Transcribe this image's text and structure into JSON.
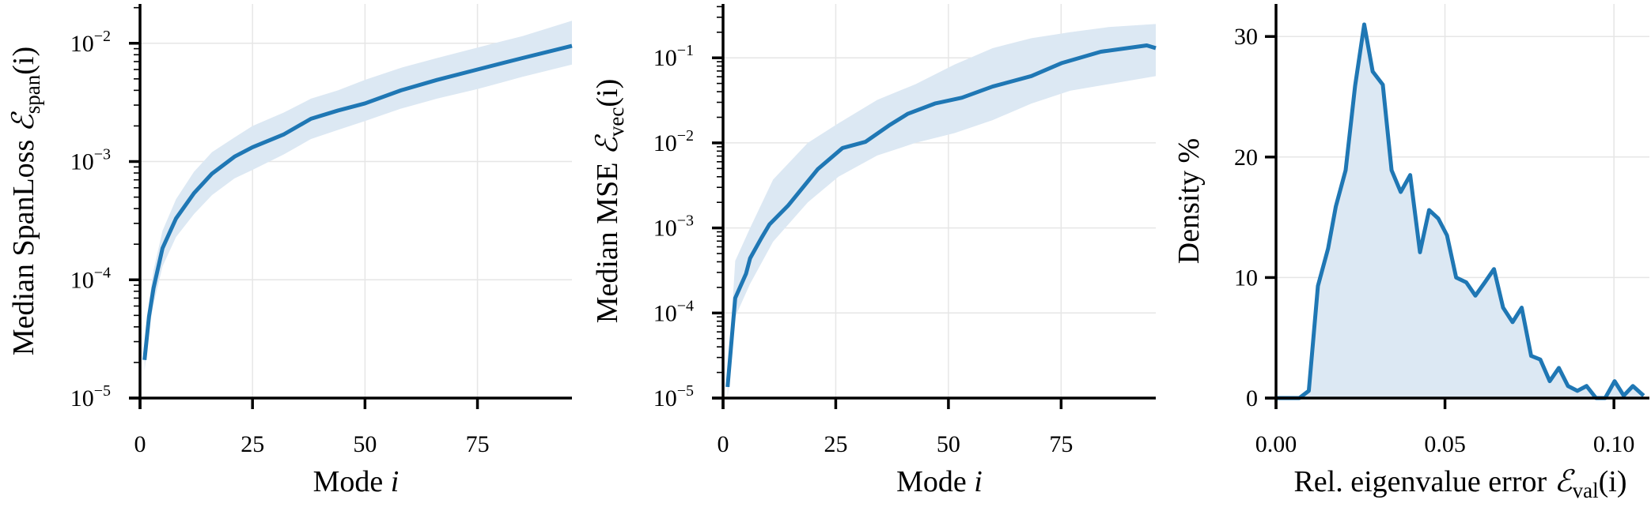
{
  "colors": {
    "line": "#1f77b4",
    "band": "#dce8f3",
    "grid": "#e6e6e6",
    "axis": "#000000"
  },
  "chart_data": [
    {
      "type": "line",
      "xlabel": {
        "text": "Mode ",
        "var": "i"
      },
      "ylabel": {
        "text": "Median SpanLoss ",
        "sym": "ℰ",
        "sub": "span",
        "arg": "(i)"
      },
      "yscale": "log",
      "xlim": [
        0,
        96
      ],
      "ylim": [
        1e-05,
        0.0215
      ],
      "xticks": [
        {
          "v": 0,
          "label": "0"
        },
        {
          "v": 25,
          "label": "25"
        },
        {
          "v": 50,
          "label": "50"
        },
        {
          "v": 75,
          "label": "75"
        }
      ],
      "yticks": [
        {
          "v": 1e-05,
          "base": "10",
          "exp": "−5"
        },
        {
          "v": 0.0001,
          "base": "10",
          "exp": "−4"
        },
        {
          "v": 0.001,
          "base": "10",
          "exp": "−3"
        },
        {
          "v": 0.01,
          "base": "10",
          "exp": "−2"
        }
      ],
      "grid": true,
      "median": {
        "x": [
          1,
          2,
          3,
          5,
          8,
          12,
          16,
          21,
          25,
          32,
          38,
          44,
          50,
          58,
          66,
          75,
          85,
          96
        ],
        "y": [
          2.1e-05,
          4.9e-05,
          8.5e-05,
          0.000185,
          0.00033,
          0.00054,
          0.00079,
          0.0011,
          0.00132,
          0.0017,
          0.0023,
          0.0027,
          0.0031,
          0.004,
          0.0049,
          0.006,
          0.0075,
          0.0095
        ]
      },
      "band": {
        "x": [
          1,
          2,
          3,
          5,
          8,
          12,
          16,
          21,
          25,
          32,
          38,
          44,
          50,
          58,
          66,
          75,
          85,
          96
        ],
        "lower": [
          1.7e-05,
          3.8e-05,
          6.2e-05,
          0.00013,
          0.00023,
          0.00036,
          0.00052,
          0.00072,
          0.00085,
          0.00115,
          0.00155,
          0.00185,
          0.0022,
          0.0028,
          0.0034,
          0.0041,
          0.0052,
          0.0066
        ],
        "upper": [
          2.5e-05,
          6.5e-05,
          0.00012,
          0.00026,
          0.00048,
          0.00082,
          0.0012,
          0.0016,
          0.002,
          0.0026,
          0.0034,
          0.004,
          0.0049,
          0.0062,
          0.0075,
          0.0092,
          0.0115,
          0.0155
        ]
      }
    },
    {
      "type": "line",
      "xlabel": {
        "text": "Mode ",
        "var": "i"
      },
      "ylabel": {
        "text": "Median MSE ",
        "sym": "ℰ",
        "sub": "vec",
        "arg": "(i)"
      },
      "yscale": "log",
      "xlim": [
        0,
        96
      ],
      "ylim": [
        1e-05,
        0.43
      ],
      "xticks": [
        {
          "v": 0,
          "label": "0"
        },
        {
          "v": 25,
          "label": "25"
        },
        {
          "v": 50,
          "label": "50"
        },
        {
          "v": 75,
          "label": "75"
        }
      ],
      "yticks": [
        {
          "v": 1e-05,
          "base": "10",
          "exp": "−5"
        },
        {
          "v": 0.0001,
          "base": "10",
          "exp": "−4"
        },
        {
          "v": 0.001,
          "base": "10",
          "exp": "−3"
        },
        {
          "v": 0.01,
          "base": "10",
          "exp": "−2"
        },
        {
          "v": 0.1,
          "base": "10",
          "exp": "−1"
        }
      ],
      "grid": true,
      "median": {
        "x": [
          1,
          2.7,
          5.1,
          6,
          8.5,
          10.3,
          14.5,
          21,
          26.5,
          31.6,
          36.8,
          41,
          47,
          53,
          59.8,
          68.4,
          75.2,
          83.8,
          94,
          96
        ],
        "y": [
          1.35e-05,
          0.00015,
          0.00029,
          0.00044,
          0.00076,
          0.0011,
          0.00185,
          0.0049,
          0.0087,
          0.0103,
          0.016,
          0.022,
          0.029,
          0.034,
          0.046,
          0.061,
          0.087,
          0.118,
          0.14,
          0.13
        ]
      },
      "band": {
        "x": [
          1,
          2.7,
          6,
          11.1,
          18.8,
          25.6,
          34.2,
          42.7,
          51.3,
          59.8,
          68.4,
          77,
          85.5,
          96
        ],
        "lower": [
          1e-05,
          9e-05,
          0.00022,
          0.00069,
          0.002,
          0.004,
          0.0071,
          0.01,
          0.013,
          0.0185,
          0.029,
          0.041,
          0.049,
          0.061
        ],
        "upper": [
          1.5e-05,
          0.00041,
          0.001,
          0.0037,
          0.01,
          0.017,
          0.032,
          0.049,
          0.083,
          0.13,
          0.17,
          0.2,
          0.23,
          0.25
        ]
      }
    },
    {
      "type": "area",
      "xlabel": {
        "text": "Rel. eigenvalue error ",
        "sym": "ℰ",
        "sub": "val",
        "arg": "(i)"
      },
      "ylabel": {
        "text": "Density %"
      },
      "xlim": [
        0,
        0.1105
      ],
      "ylim": [
        0,
        32.7
      ],
      "xticks": [
        {
          "v": 0,
          "label": "0.00"
        },
        {
          "v": 0.05,
          "label": "0.05"
        },
        {
          "v": 0.1,
          "label": "0.10"
        }
      ],
      "yticks": [
        {
          "v": 0,
          "label": "0"
        },
        {
          "v": 10,
          "label": "10"
        },
        {
          "v": 20,
          "label": "20"
        },
        {
          "v": 30,
          "label": "30"
        }
      ],
      "grid": true,
      "x": [
        0,
        0.0069,
        0.0097,
        0.0124,
        0.0154,
        0.0177,
        0.0206,
        0.0234,
        0.0261,
        0.0286,
        0.0316,
        0.0342,
        0.0369,
        0.0397,
        0.0426,
        0.0453,
        0.048,
        0.0506,
        0.0533,
        0.0563,
        0.059,
        0.0618,
        0.0645,
        0.0672,
        0.07,
        0.0727,
        0.0755,
        0.0782,
        0.081,
        0.0837,
        0.0864,
        0.0892,
        0.0919,
        0.0947,
        0.0974,
        0.1002,
        0.1029,
        0.1056,
        0.1088
      ],
      "y": [
        0,
        0,
        0.6,
        9.3,
        12.4,
        15.9,
        18.9,
        25.9,
        31.0,
        27.1,
        26.0,
        18.9,
        17.1,
        18.5,
        12.1,
        15.6,
        14.9,
        13.5,
        10.0,
        9.6,
        8.5,
        9.6,
        10.7,
        7.5,
        6.3,
        7.5,
        3.5,
        3.2,
        1.4,
        2.5,
        1.0,
        0.6,
        1.0,
        0,
        0,
        1.4,
        0.2,
        1.0,
        0.2
      ]
    }
  ]
}
